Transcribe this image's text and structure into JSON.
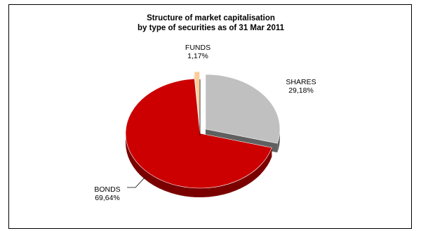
{
  "chart_data": {
    "type": "pie",
    "title_line1": "Structure of market capitalisation",
    "title_line2": "by type of securities as of 31 Mar 2011",
    "slices": [
      {
        "name": "SHARES",
        "value": 29.18,
        "label": "29,18%",
        "color": "#c0c0c0",
        "side": "#606060",
        "exploded": true
      },
      {
        "name": "BONDS",
        "value": 69.64,
        "label": "69,64%",
        "color": "#cc0000",
        "side": "#7a0000",
        "exploded": false
      },
      {
        "name": "FUNDS",
        "value": 1.17,
        "label": "1,17%",
        "color": "#ffcc99",
        "side": "#c08a5a",
        "exploded": true
      }
    ]
  }
}
